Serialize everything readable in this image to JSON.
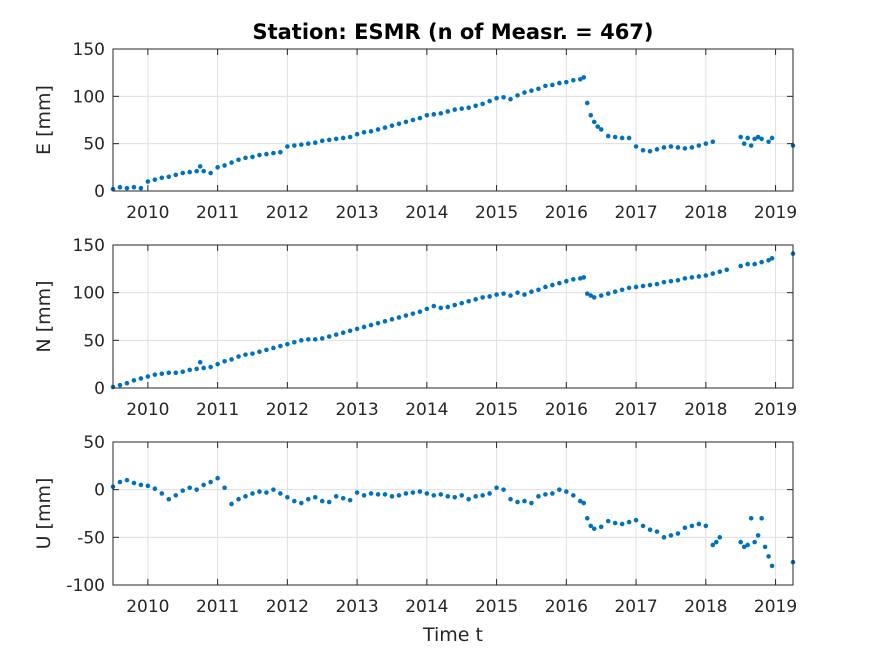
{
  "chart_data": {
    "type": "scatter",
    "title": "Station: ESMR (n of Measr. = 467)",
    "xlabel": "Time t",
    "marker_color": "#0072BD",
    "grid": true,
    "xlim": [
      2009.5,
      2019.25
    ],
    "xticks": [
      2010,
      2011,
      2012,
      2013,
      2014,
      2015,
      2016,
      2017,
      2018,
      2019
    ],
    "panels": [
      {
        "id": "E",
        "ylabel": "E [mm]",
        "ylim": [
          0,
          150
        ],
        "yticks": [
          0,
          50,
          100,
          150
        ],
        "series": [
          {
            "x": [
              2009.5,
              2009.6,
              2009.7,
              2009.8,
              2009.9,
              2010.0,
              2010.1,
              2010.2,
              2010.3,
              2010.4,
              2010.5,
              2010.6,
              2010.7,
              2010.75,
              2010.8,
              2010.9,
              2011.0,
              2011.1,
              2011.2,
              2011.3,
              2011.4,
              2011.5,
              2011.6,
              2011.7,
              2011.8,
              2011.9,
              2012.0,
              2012.1,
              2012.2,
              2012.3,
              2012.4,
              2012.5,
              2012.6,
              2012.7,
              2012.8,
              2012.9,
              2013.0,
              2013.1,
              2013.2,
              2013.3,
              2013.4,
              2013.5,
              2013.6,
              2013.7,
              2013.8,
              2013.9,
              2014.0,
              2014.1,
              2014.2,
              2014.3,
              2014.4,
              2014.5,
              2014.6,
              2014.7,
              2014.8,
              2014.9,
              2015.0,
              2015.1,
              2015.2,
              2015.3,
              2015.4,
              2015.5,
              2015.6,
              2015.7,
              2015.8,
              2015.9,
              2016.0,
              2016.1,
              2016.2,
              2016.25,
              2016.3,
              2016.35,
              2016.4,
              2016.45,
              2016.5,
              2016.6,
              2016.7,
              2016.8,
              2016.9,
              2017.0,
              2017.1,
              2017.2,
              2017.3,
              2017.4,
              2017.5,
              2017.6,
              2017.7,
              2017.8,
              2017.9,
              2018.0,
              2018.1,
              2018.5,
              2018.55,
              2018.6,
              2018.65,
              2018.7,
              2018.75,
              2018.8,
              2018.9,
              2018.95,
              2019.25
            ],
            "y": [
              2,
              4,
              3,
              4,
              3,
              10,
              12,
              14,
              15,
              17,
              19,
              20,
              21,
              26,
              21,
              19,
              25,
              27,
              30,
              33,
              35,
              36,
              38,
              39,
              40,
              41,
              47,
              48,
              49,
              50,
              51,
              53,
              54,
              55,
              56,
              57,
              60,
              62,
              63,
              65,
              67,
              69,
              71,
              73,
              75,
              77,
              80,
              81,
              82,
              84,
              86,
              87,
              88,
              90,
              92,
              95,
              98,
              99,
              97,
              101,
              104,
              106,
              108,
              111,
              112,
              114,
              115,
              117,
              118,
              120,
              93,
              80,
              73,
              68,
              65,
              58,
              57,
              56,
              56,
              47,
              43,
              42,
              44,
              46,
              47,
              46,
              45,
              46,
              48,
              50,
              52,
              57,
              50,
              56,
              48,
              55,
              57,
              55,
              52,
              56,
              48
            ]
          }
        ]
      },
      {
        "id": "N",
        "ylabel": "N [mm]",
        "ylim": [
          0,
          150
        ],
        "yticks": [
          0,
          50,
          100,
          150
        ],
        "series": [
          {
            "x": [
              2009.5,
              2009.6,
              2009.7,
              2009.8,
              2009.9,
              2010.0,
              2010.1,
              2010.2,
              2010.3,
              2010.4,
              2010.5,
              2010.6,
              2010.7,
              2010.75,
              2010.8,
              2010.9,
              2011.0,
              2011.1,
              2011.2,
              2011.3,
              2011.4,
              2011.5,
              2011.6,
              2011.7,
              2011.8,
              2011.9,
              2012.0,
              2012.1,
              2012.2,
              2012.3,
              2012.4,
              2012.5,
              2012.6,
              2012.7,
              2012.8,
              2012.9,
              2013.0,
              2013.1,
              2013.2,
              2013.3,
              2013.4,
              2013.5,
              2013.6,
              2013.7,
              2013.8,
              2013.9,
              2014.0,
              2014.1,
              2014.2,
              2014.3,
              2014.4,
              2014.5,
              2014.6,
              2014.7,
              2014.8,
              2014.9,
              2015.0,
              2015.1,
              2015.2,
              2015.3,
              2015.4,
              2015.5,
              2015.6,
              2015.7,
              2015.8,
              2015.9,
              2016.0,
              2016.1,
              2016.2,
              2016.25,
              2016.3,
              2016.35,
              2016.4,
              2016.5,
              2016.6,
              2016.7,
              2016.8,
              2016.9,
              2017.0,
              2017.1,
              2017.2,
              2017.3,
              2017.4,
              2017.5,
              2017.6,
              2017.7,
              2017.8,
              2017.9,
              2018.0,
              2018.1,
              2018.2,
              2018.3,
              2018.5,
              2018.6,
              2018.7,
              2018.8,
              2018.9,
              2018.95,
              2019.25
            ],
            "y": [
              1,
              3,
              5,
              8,
              10,
              12,
              14,
              15,
              16,
              16,
              17,
              19,
              20,
              27,
              21,
              22,
              25,
              28,
              30,
              33,
              35,
              36,
              38,
              40,
              42,
              44,
              46,
              48,
              50,
              51,
              51,
              52,
              54,
              56,
              58,
              60,
              62,
              64,
              66,
              68,
              70,
              72,
              74,
              76,
              78,
              80,
              83,
              86,
              84,
              85,
              87,
              89,
              91,
              93,
              95,
              96,
              98,
              99,
              97,
              100,
              98,
              101,
              103,
              106,
              108,
              110,
              112,
              114,
              115,
              116,
              99,
              97,
              95,
              97,
              99,
              101,
              103,
              105,
              106,
              107,
              108,
              109,
              111,
              112,
              113,
              115,
              116,
              117,
              118,
              120,
              122,
              124,
              128,
              130,
              130,
              132,
              134,
              136,
              141
            ]
          }
        ]
      },
      {
        "id": "U",
        "ylabel": "U [mm]",
        "ylim": [
          -100,
          50
        ],
        "yticks": [
          -100,
          -50,
          0,
          50
        ],
        "series": [
          {
            "x": [
              2009.5,
              2009.6,
              2009.7,
              2009.8,
              2009.9,
              2010.0,
              2010.1,
              2010.2,
              2010.3,
              2010.4,
              2010.5,
              2010.6,
              2010.7,
              2010.8,
              2010.9,
              2011.0,
              2011.1,
              2011.2,
              2011.3,
              2011.4,
              2011.5,
              2011.6,
              2011.7,
              2011.8,
              2011.9,
              2012.0,
              2012.1,
              2012.2,
              2012.3,
              2012.4,
              2012.5,
              2012.6,
              2012.7,
              2012.8,
              2012.9,
              2013.0,
              2013.1,
              2013.2,
              2013.3,
              2013.4,
              2013.5,
              2013.6,
              2013.7,
              2013.8,
              2013.9,
              2014.0,
              2014.1,
              2014.2,
              2014.3,
              2014.4,
              2014.5,
              2014.6,
              2014.7,
              2014.8,
              2014.9,
              2015.0,
              2015.1,
              2015.2,
              2015.3,
              2015.4,
              2015.5,
              2015.6,
              2015.7,
              2015.8,
              2015.9,
              2016.0,
              2016.1,
              2016.2,
              2016.25,
              2016.3,
              2016.35,
              2016.4,
              2016.5,
              2016.6,
              2016.7,
              2016.8,
              2016.9,
              2017.0,
              2017.1,
              2017.2,
              2017.3,
              2017.4,
              2017.5,
              2017.6,
              2017.7,
              2017.8,
              2017.9,
              2018.0,
              2018.1,
              2018.15,
              2018.2,
              2018.5,
              2018.55,
              2018.6,
              2018.65,
              2018.7,
              2018.75,
              2018.8,
              2018.85,
              2018.9,
              2018.95,
              2019.25
            ],
            "y": [
              3,
              8,
              10,
              7,
              5,
              4,
              1,
              -4,
              -10,
              -6,
              -1,
              2,
              0,
              5,
              8,
              12,
              2,
              -15,
              -10,
              -7,
              -4,
              -2,
              -3,
              0,
              -4,
              -8,
              -12,
              -14,
              -10,
              -8,
              -12,
              -13,
              -7,
              -9,
              -11,
              -3,
              -6,
              -4,
              -5,
              -5,
              -7,
              -6,
              -4,
              -3,
              -2,
              -4,
              -6,
              -5,
              -7,
              -8,
              -6,
              -10,
              -7,
              -6,
              -4,
              2,
              0,
              -10,
              -13,
              -12,
              -14,
              -7,
              -5,
              -4,
              0,
              -2,
              -6,
              -12,
              -14,
              -30,
              -38,
              -41,
              -39,
              -33,
              -35,
              -36,
              -34,
              -32,
              -38,
              -42,
              -44,
              -50,
              -48,
              -46,
              -40,
              -38,
              -36,
              -38,
              -58,
              -55,
              -50,
              -55,
              -60,
              -58,
              -30,
              -55,
              -48,
              -30,
              -60,
              -70,
              -80,
              -76
            ]
          }
        ]
      }
    ]
  }
}
